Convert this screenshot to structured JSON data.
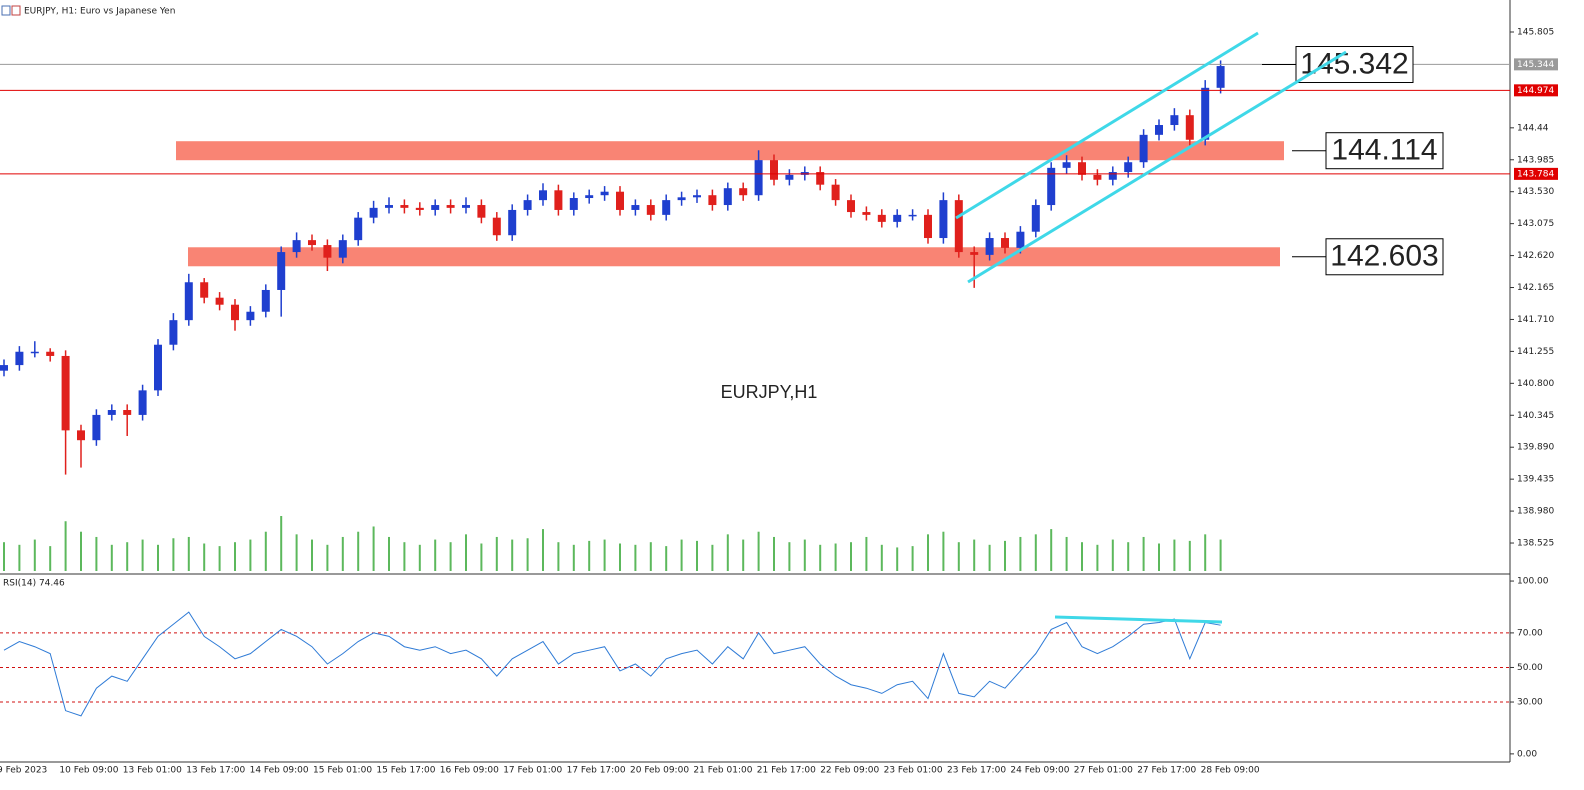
{
  "header": {
    "title": "EURJPY, H1:  Euro vs Japanese Yen"
  },
  "chart_data": [
    {
      "type": "candlestick",
      "symbol": "EURJPY,H1",
      "open": [
        140.98,
        141.06,
        141.25,
        141.25,
        141.19,
        140.13,
        139.99,
        140.35,
        140.42,
        140.35,
        140.7,
        141.35,
        141.7,
        142.24,
        142.02,
        141.92,
        141.7,
        141.82,
        142.13,
        142.67,
        142.84,
        142.77,
        142.59,
        142.84,
        143.16,
        143.3,
        143.34,
        143.3,
        143.27,
        143.34,
        143.3,
        143.34,
        143.16,
        142.91,
        143.27,
        143.41,
        143.55,
        143.27,
        143.44,
        143.48,
        143.53,
        143.27,
        143.34,
        143.2,
        143.41,
        143.45,
        143.48,
        143.34,
        143.58,
        143.48,
        143.98,
        143.7,
        143.77,
        143.81,
        143.63,
        143.41,
        143.24,
        143.2,
        143.1,
        143.2,
        143.2,
        142.87,
        143.41,
        142.67,
        142.63,
        142.87,
        142.73,
        142.96,
        143.34,
        143.87,
        143.95,
        143.77,
        143.7,
        143.81,
        143.95,
        144.34,
        144.48,
        144.62,
        144.27,
        145.01
      ],
      "high": [
        141.14,
        141.33,
        141.4,
        141.3,
        141.27,
        140.21,
        140.43,
        140.5,
        140.5,
        140.78,
        141.43,
        141.8,
        142.36,
        142.3,
        142.1,
        142.0,
        141.9,
        142.21,
        142.75,
        142.95,
        142.92,
        142.85,
        142.92,
        143.24,
        143.4,
        143.45,
        143.42,
        143.38,
        143.42,
        143.42,
        143.45,
        143.42,
        143.24,
        143.35,
        143.49,
        143.65,
        143.63,
        143.52,
        143.56,
        143.61,
        143.61,
        143.42,
        143.42,
        143.49,
        143.53,
        143.56,
        143.56,
        143.66,
        143.66,
        144.12,
        144.06,
        143.85,
        143.89,
        143.89,
        143.71,
        143.49,
        143.32,
        143.28,
        143.28,
        143.28,
        143.28,
        143.52,
        143.49,
        142.75,
        142.95,
        142.95,
        143.04,
        143.42,
        143.95,
        144.05,
        144.03,
        143.85,
        143.89,
        144.03,
        144.42,
        144.56,
        144.72,
        144.7,
        145.12,
        145.4
      ],
      "low": [
        140.9,
        140.98,
        141.17,
        141.11,
        139.5,
        139.6,
        139.91,
        140.27,
        140.05,
        140.27,
        140.62,
        141.27,
        141.62,
        141.94,
        141.84,
        141.55,
        141.62,
        141.74,
        141.75,
        142.59,
        142.69,
        142.4,
        142.51,
        142.76,
        143.08,
        143.22,
        143.22,
        143.19,
        143.19,
        143.22,
        143.22,
        143.08,
        142.83,
        142.83,
        143.19,
        143.33,
        143.19,
        143.19,
        143.36,
        143.4,
        143.19,
        143.19,
        143.12,
        143.12,
        143.33,
        143.37,
        143.26,
        143.26,
        143.4,
        143.4,
        143.62,
        143.62,
        143.69,
        143.55,
        143.33,
        143.16,
        143.12,
        143.02,
        143.02,
        143.12,
        142.79,
        142.79,
        142.59,
        142.16,
        142.55,
        142.65,
        142.65,
        142.88,
        143.26,
        143.79,
        143.69,
        143.62,
        143.62,
        143.73,
        143.87,
        144.26,
        144.4,
        144.19,
        144.19,
        144.93
      ],
      "close": [
        141.06,
        141.25,
        141.25,
        141.19,
        140.13,
        139.99,
        140.35,
        140.42,
        140.35,
        140.7,
        141.35,
        141.7,
        142.24,
        142.02,
        141.92,
        141.7,
        141.82,
        142.13,
        142.67,
        142.84,
        142.77,
        142.59,
        142.84,
        143.16,
        143.3,
        143.34,
        143.3,
        143.27,
        143.34,
        143.3,
        143.34,
        143.16,
        142.91,
        143.27,
        143.41,
        143.55,
        143.27,
        143.44,
        143.48,
        143.53,
        143.27,
        143.34,
        143.2,
        143.41,
        143.45,
        143.48,
        143.34,
        143.58,
        143.48,
        143.98,
        143.7,
        143.77,
        143.81,
        143.63,
        143.41,
        143.24,
        143.2,
        143.1,
        143.2,
        143.2,
        142.87,
        143.41,
        142.67,
        142.63,
        142.87,
        142.73,
        142.96,
        143.34,
        143.87,
        143.95,
        143.77,
        143.7,
        143.81,
        143.95,
        144.34,
        144.48,
        144.62,
        144.27,
        145.01,
        145.32
      ],
      "volume": [
        1100,
        1000,
        1200,
        950,
        1900,
        1500,
        1300,
        1000,
        1100,
        1200,
        1000,
        1250,
        1300,
        1050,
        950,
        1100,
        1200,
        1500,
        2100,
        1400,
        1200,
        1000,
        1300,
        1500,
        1700,
        1300,
        1100,
        1000,
        1200,
        1100,
        1400,
        1050,
        1300,
        1200,
        1250,
        1600,
        1100,
        1000,
        1150,
        1200,
        1050,
        1000,
        1100,
        950,
        1200,
        1150,
        1000,
        1400,
        1200,
        1500,
        1300,
        1100,
        1200,
        1000,
        1050,
        1100,
        1300,
        1000,
        900,
        950,
        1400,
        1500,
        1100,
        1200,
        1000,
        1150,
        1300,
        1400,
        1600,
        1300,
        1100,
        1000,
        1200,
        1100,
        1300,
        1050,
        1200,
        1150,
        1400,
        1200
      ],
      "bull_color": "#1f3fcf",
      "bear_color": "#e0201c",
      "volume_color": "#5cb85c",
      "ylim": [
        138.098,
        146.261
      ],
      "yticks": [
        {
          "value": 145.805,
          "label": "145.805"
        },
        144.44,
        143.985,
        {
          "value": 143.53,
          "label": "143.530"
        },
        143.075,
        {
          "value": 142.62,
          "label": "142.620"
        },
        142.165,
        {
          "value": 141.71,
          "label": "141.710"
        },
        141.255,
        {
          "value": 140.8,
          "label": "140.800"
        },
        140.345,
        {
          "value": 139.89,
          "label": "139.890"
        },
        139.435,
        {
          "value": 138.98,
          "label": "138.980"
        },
        138.525
      ],
      "price_lines": [
        {
          "value": 145.344,
          "color": "#9a9a9a"
        },
        {
          "value": 144.974,
          "color": "#e00000"
        },
        {
          "value": 143.784,
          "color": "#e00000"
        }
      ],
      "levels": [
        145.342,
        144.114,
        142.603
      ],
      "zones": [
        144.114,
        142.603
      ],
      "zone_color": "#f98474",
      "x_labels": [
        "9 Feb 2023",
        "10 Feb 09:00",
        "13 Feb 01:00",
        "13 Feb 17:00",
        "14 Feb 09:00",
        "15 Feb 01:00",
        "15 Feb 17:00",
        "16 Feb 09:00",
        "17 Feb 01:00",
        "17 Feb 17:00",
        "20 Feb 09:00",
        "21 Feb 01:00",
        "21 Feb 17:00",
        "22 Feb 09:00",
        "23 Feb 01:00",
        "23 Feb 17:00",
        "24 Feb 09:00",
        "27 Feb 01:00",
        "27 Feb 17:00",
        "28 Feb 09:00"
      ]
    },
    {
      "type": "line",
      "title": "RSI(14) 74.46",
      "values": [
        60,
        65,
        62,
        58,
        25,
        22,
        38,
        45,
        42,
        55,
        68,
        75,
        82,
        68,
        62,
        55,
        58,
        65,
        72,
        68,
        62,
        52,
        58,
        65,
        70,
        68,
        62,
        60,
        62,
        58,
        60,
        55,
        45,
        55,
        60,
        65,
        52,
        58,
        60,
        62,
        48,
        52,
        45,
        55,
        58,
        60,
        52,
        62,
        55,
        70,
        58,
        60,
        62,
        52,
        45,
        40,
        38,
        35,
        40,
        42,
        32,
        58,
        35,
        33,
        42,
        38,
        48,
        58,
        72,
        76,
        62,
        58,
        62,
        68,
        75,
        76,
        78,
        55,
        76,
        74.46
      ],
      "color": "#2f7bd6",
      "level_color": "#d01010",
      "ylim": [
        -4.7,
        103.5
      ],
      "yticks": [
        {
          "value": 100,
          "label": "100.00"
        },
        {
          "value": 70,
          "label": "70.00"
        },
        {
          "value": 50,
          "label": "50.00"
        },
        {
          "value": 30,
          "label": "30.00"
        },
        {
          "value": 0,
          "label": "0.00"
        }
      ],
      "levels": [
        70,
        50,
        30
      ]
    }
  ]
}
